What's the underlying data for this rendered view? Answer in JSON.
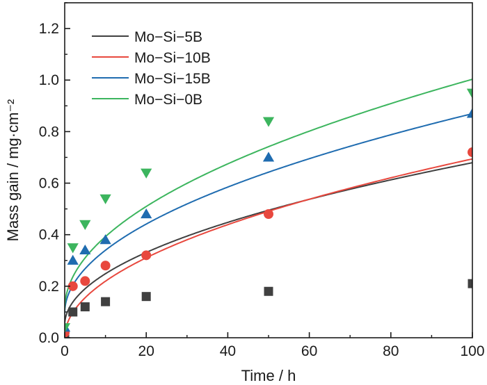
{
  "chart_data": {
    "type": "scatter",
    "xlabel": "Time / h",
    "ylabel": "Mass gain / mg·cm⁻²",
    "xlim": [
      0,
      100
    ],
    "ylim": [
      0,
      1.3
    ],
    "xticks": [
      0,
      20,
      40,
      60,
      80,
      100
    ],
    "xtick_labels": [
      "0",
      "20",
      "40",
      "60",
      "80",
      "100"
    ],
    "yticks": [
      0,
      0.2,
      0.4,
      0.6,
      0.8,
      1.0,
      1.2
    ],
    "ytick_labels": [
      "0.0",
      "0.2",
      "0.4",
      "0.6",
      "0.8",
      "1.0",
      "1.2"
    ],
    "legend_position": "top-left",
    "series": [
      {
        "name": "Mo−Si−5B",
        "color": "#404040",
        "marker": "square",
        "x": [
          0,
          2,
          5,
          10,
          20,
          50,
          100
        ],
        "y": [
          0.01,
          0.1,
          0.12,
          0.14,
          0.16,
          0.18,
          0.21
        ],
        "fit": {
          "a": 0.0493,
          "b": 0.063,
          "n": 0.5
        }
      },
      {
        "name": "Mo−Si−10B",
        "color": "#e8483e",
        "marker": "circle",
        "x": [
          0,
          2,
          5,
          10,
          20,
          50,
          100
        ],
        "y": [
          0.02,
          0.2,
          0.22,
          0.28,
          0.32,
          0.48,
          0.72
        ],
        "fit": {
          "a": 0.0,
          "b": 0.0694,
          "n": 0.5
        }
      },
      {
        "name": "Mo−Si−15B",
        "color": "#1f6cb0",
        "marker": "triangle-up",
        "x": [
          0,
          2,
          5,
          10,
          20,
          50,
          100
        ],
        "y": [
          0.04,
          0.3,
          0.34,
          0.38,
          0.48,
          0.7,
          0.87
        ],
        "fit": {
          "a": 0.0946,
          "b": 0.0775,
          "n": 0.5
        }
      },
      {
        "name": "Mo−Si−0B",
        "color": "#3cb55e",
        "marker": "triangle-down",
        "x": [
          0,
          2,
          5,
          10,
          20,
          50,
          100
        ],
        "y": [
          0.04,
          0.35,
          0.44,
          0.54,
          0.64,
          0.84,
          0.95
        ],
        "fit": {
          "a": 0.1101,
          "b": 0.0893,
          "n": 0.5
        }
      }
    ]
  }
}
